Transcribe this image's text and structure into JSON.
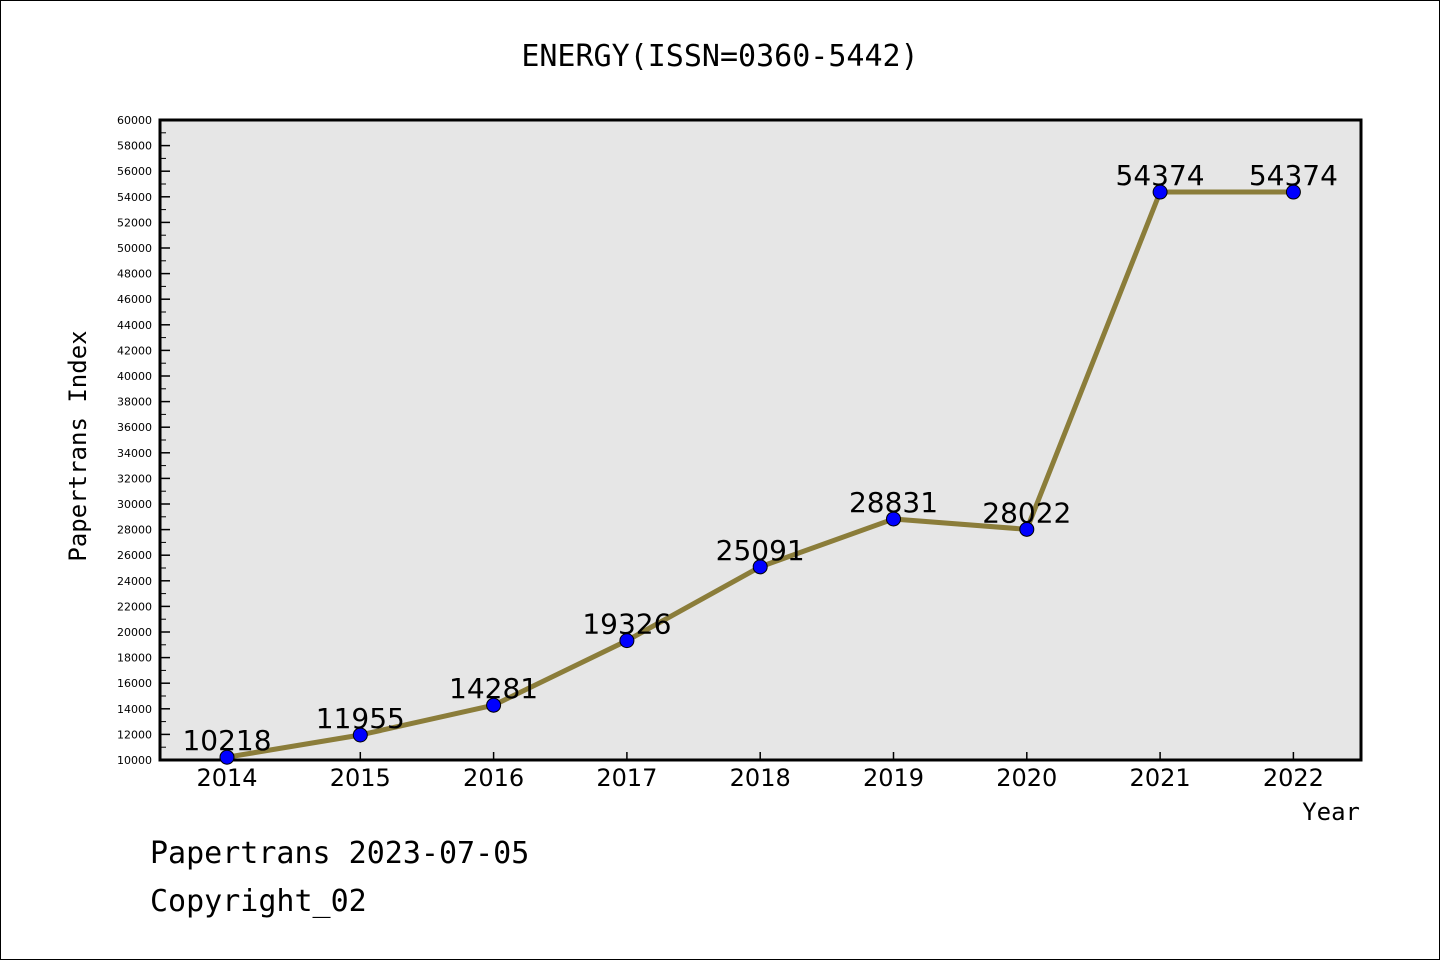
{
  "chart_data": {
    "type": "line",
    "title": "ENERGY(ISSN=0360-5442)",
    "xlabel": "Year",
    "ylabel": "Papertrans Index",
    "categories": [
      "2014",
      "2015",
      "2016",
      "2017",
      "2018",
      "2019",
      "2020",
      "2021",
      "2022"
    ],
    "series": [
      {
        "values": [
          10218,
          11955,
          14281,
          19326,
          25091,
          28831,
          28022,
          54374,
          54374
        ]
      }
    ],
    "data_labels": [
      "10218",
      "11955",
      "14281",
      "19326",
      "25091",
      "28831",
      "28022",
      "54374",
      "54374"
    ],
    "ylim": [
      10000,
      60000
    ],
    "yticks": [
      "10000",
      "12000",
      "14000",
      "16000",
      "18000",
      "20000",
      "22000",
      "24000",
      "26000",
      "28000",
      "30000",
      "32000",
      "34000",
      "36000",
      "38000",
      "40000",
      "42000",
      "44000",
      "46000",
      "48000",
      "50000",
      "52000",
      "54000",
      "56000",
      "58000",
      "60000"
    ],
    "grid": false,
    "colors": {
      "line": "#8b7d3a",
      "marker": "#0000ff",
      "plot_bg": "#e6e6e6"
    }
  },
  "footer": {
    "line1": "Papertrans 2023-07-05",
    "line2": "Copyright_02"
  }
}
